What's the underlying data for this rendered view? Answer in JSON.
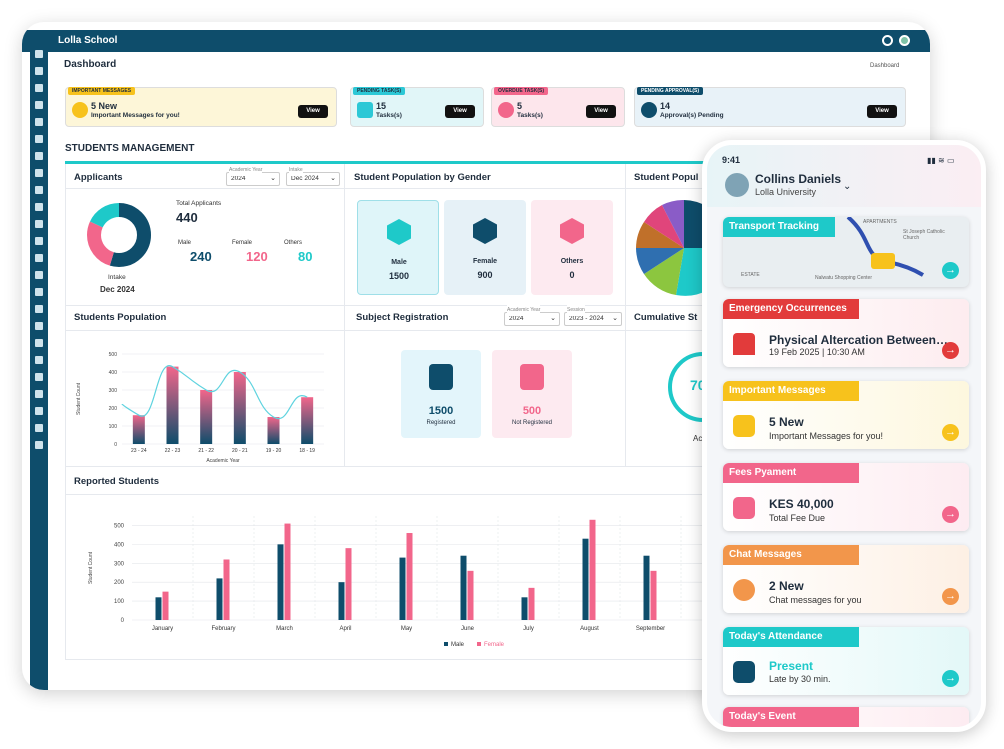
{
  "app": {
    "title": "Lolla School",
    "page_title": "Dashboard",
    "breadcrumb": "Dashboard",
    "section_title": "STUDENTS MANAGEMENT"
  },
  "alerts": [
    {
      "tag": "IMPORTANT MESSAGES",
      "count": "5 New",
      "text": "Important Messages for you!",
      "button": "View",
      "color": "#fdf6d8",
      "tag_color": "#f7c21c"
    },
    {
      "tag": "PENDING TASK(S)",
      "count": "15",
      "text": "Tasks(s)",
      "button": "View",
      "color": "#e1f6f8",
      "tag_color": "#2cc8d6"
    },
    {
      "tag": "OVERDUE TASK(S)",
      "count": "5",
      "text": "Tasks(s)",
      "button": "View",
      "color": "#fde6ec",
      "tag_color": "#f2668b"
    },
    {
      "tag": "PENDING APPROVAL(S)",
      "count": "14",
      "text": "Approval(s) Pending",
      "button": "View",
      "color": "#e8f2f8",
      "tag_color": "#0e4d6b"
    }
  ],
  "applicants": {
    "title": "Applicants",
    "year_label": "Academic Year",
    "year": "2024",
    "intake_label": "Intake",
    "intake": "Dec 2024",
    "total_label": "Total Applicants",
    "total": "440",
    "male_label": "Male",
    "male": "240",
    "female_label": "Female",
    "female": "120",
    "others_label": "Others",
    "others": "80",
    "intake_caption": "Intake",
    "intake_value": "Dec 2024"
  },
  "gender": {
    "title": "Student Population by Gender",
    "cards": [
      {
        "label": "Male",
        "value": "1500"
      },
      {
        "label": "Female",
        "value": "900"
      },
      {
        "label": "Others",
        "value": "0"
      }
    ]
  },
  "pie_panel": {
    "title": "Student Popul"
  },
  "population": {
    "title": "Students Population",
    "ylabel": "Student Count",
    "xlabel": "Academic Year"
  },
  "registration": {
    "title": "Subject Registration",
    "year_label": "Academic Year",
    "year": "2024",
    "session_label": "Session",
    "session": "2023 - 2024",
    "registered": "1500",
    "registered_label": "Registered",
    "not_registered": "500",
    "not_registered_label": "Not Registered"
  },
  "cumulative": {
    "title": "Cumulative St",
    "value": "70",
    "caption": "Ac"
  },
  "reported": {
    "title": "Reported Students",
    "ylabel": "Student Count",
    "legend_male": "Male",
    "legend_female": "Female"
  },
  "chart_data": [
    {
      "type": "bar",
      "title": "Students Population",
      "xlabel": "Academic Year",
      "ylabel": "Student Count",
      "categories": [
        "23 - 24",
        "22 - 23",
        "21 - 22",
        "20 - 21",
        "19 - 20",
        "18 - 19"
      ],
      "values": [
        160,
        430,
        300,
        400,
        150,
        260
      ],
      "ylim": [
        0,
        500
      ],
      "yticks": [
        0,
        100,
        200,
        300,
        400,
        500
      ],
      "grid": true
    },
    {
      "type": "bar",
      "title": "Reported Students",
      "ylabel": "Student Count",
      "categories": [
        "January",
        "February",
        "March",
        "April",
        "May",
        "June",
        "July",
        "August",
        "September"
      ],
      "series": [
        {
          "name": "Male",
          "values": [
            120,
            220,
            400,
            200,
            330,
            340,
            120,
            430,
            340
          ],
          "color": "#0e4d6b"
        },
        {
          "name": "Female",
          "values": [
            150,
            320,
            510,
            380,
            460,
            260,
            170,
            530,
            260
          ],
          "color": "#f2668b"
        }
      ],
      "ylim": [
        0,
        500
      ],
      "yticks": [
        0,
        100,
        200,
        300,
        400,
        500
      ],
      "grid": true,
      "legend": "bottom"
    }
  ],
  "phone": {
    "time": "9:41",
    "user_name": "Collins Daniels",
    "org": "Lolla University",
    "map_title": "Transport Tracking",
    "map_labels": [
      "St Joseph Catholic Church",
      "ESTATE",
      "Nalwatu Shopping Center",
      "APARTMENTS"
    ],
    "cards": [
      {
        "title": "Emergency Occurrences",
        "line1": "Physical Altercation Between…",
        "line2": "19 Feb 2025 | 10:30 AM",
        "color": "#e23b3b"
      },
      {
        "title": "Important Messages",
        "line1": "5 New",
        "line2": "Important Messages for you!",
        "color": "#f7c21c"
      },
      {
        "title": "Fees Pyament",
        "line1": "KES 40,000",
        "line2": "Total Fee Due",
        "color": "#f2668b"
      },
      {
        "title": "Chat Messages",
        "line1": "2 New",
        "line2": "Chat messages for you",
        "color": "#f2964b"
      },
      {
        "title": "Today's Attendance",
        "line1": "Present",
        "line2": "Late by 30 min.",
        "color": "#1ec9c9"
      },
      {
        "title": "Today's Event",
        "line1": "",
        "line2": "",
        "color": "#f2668b"
      }
    ]
  }
}
